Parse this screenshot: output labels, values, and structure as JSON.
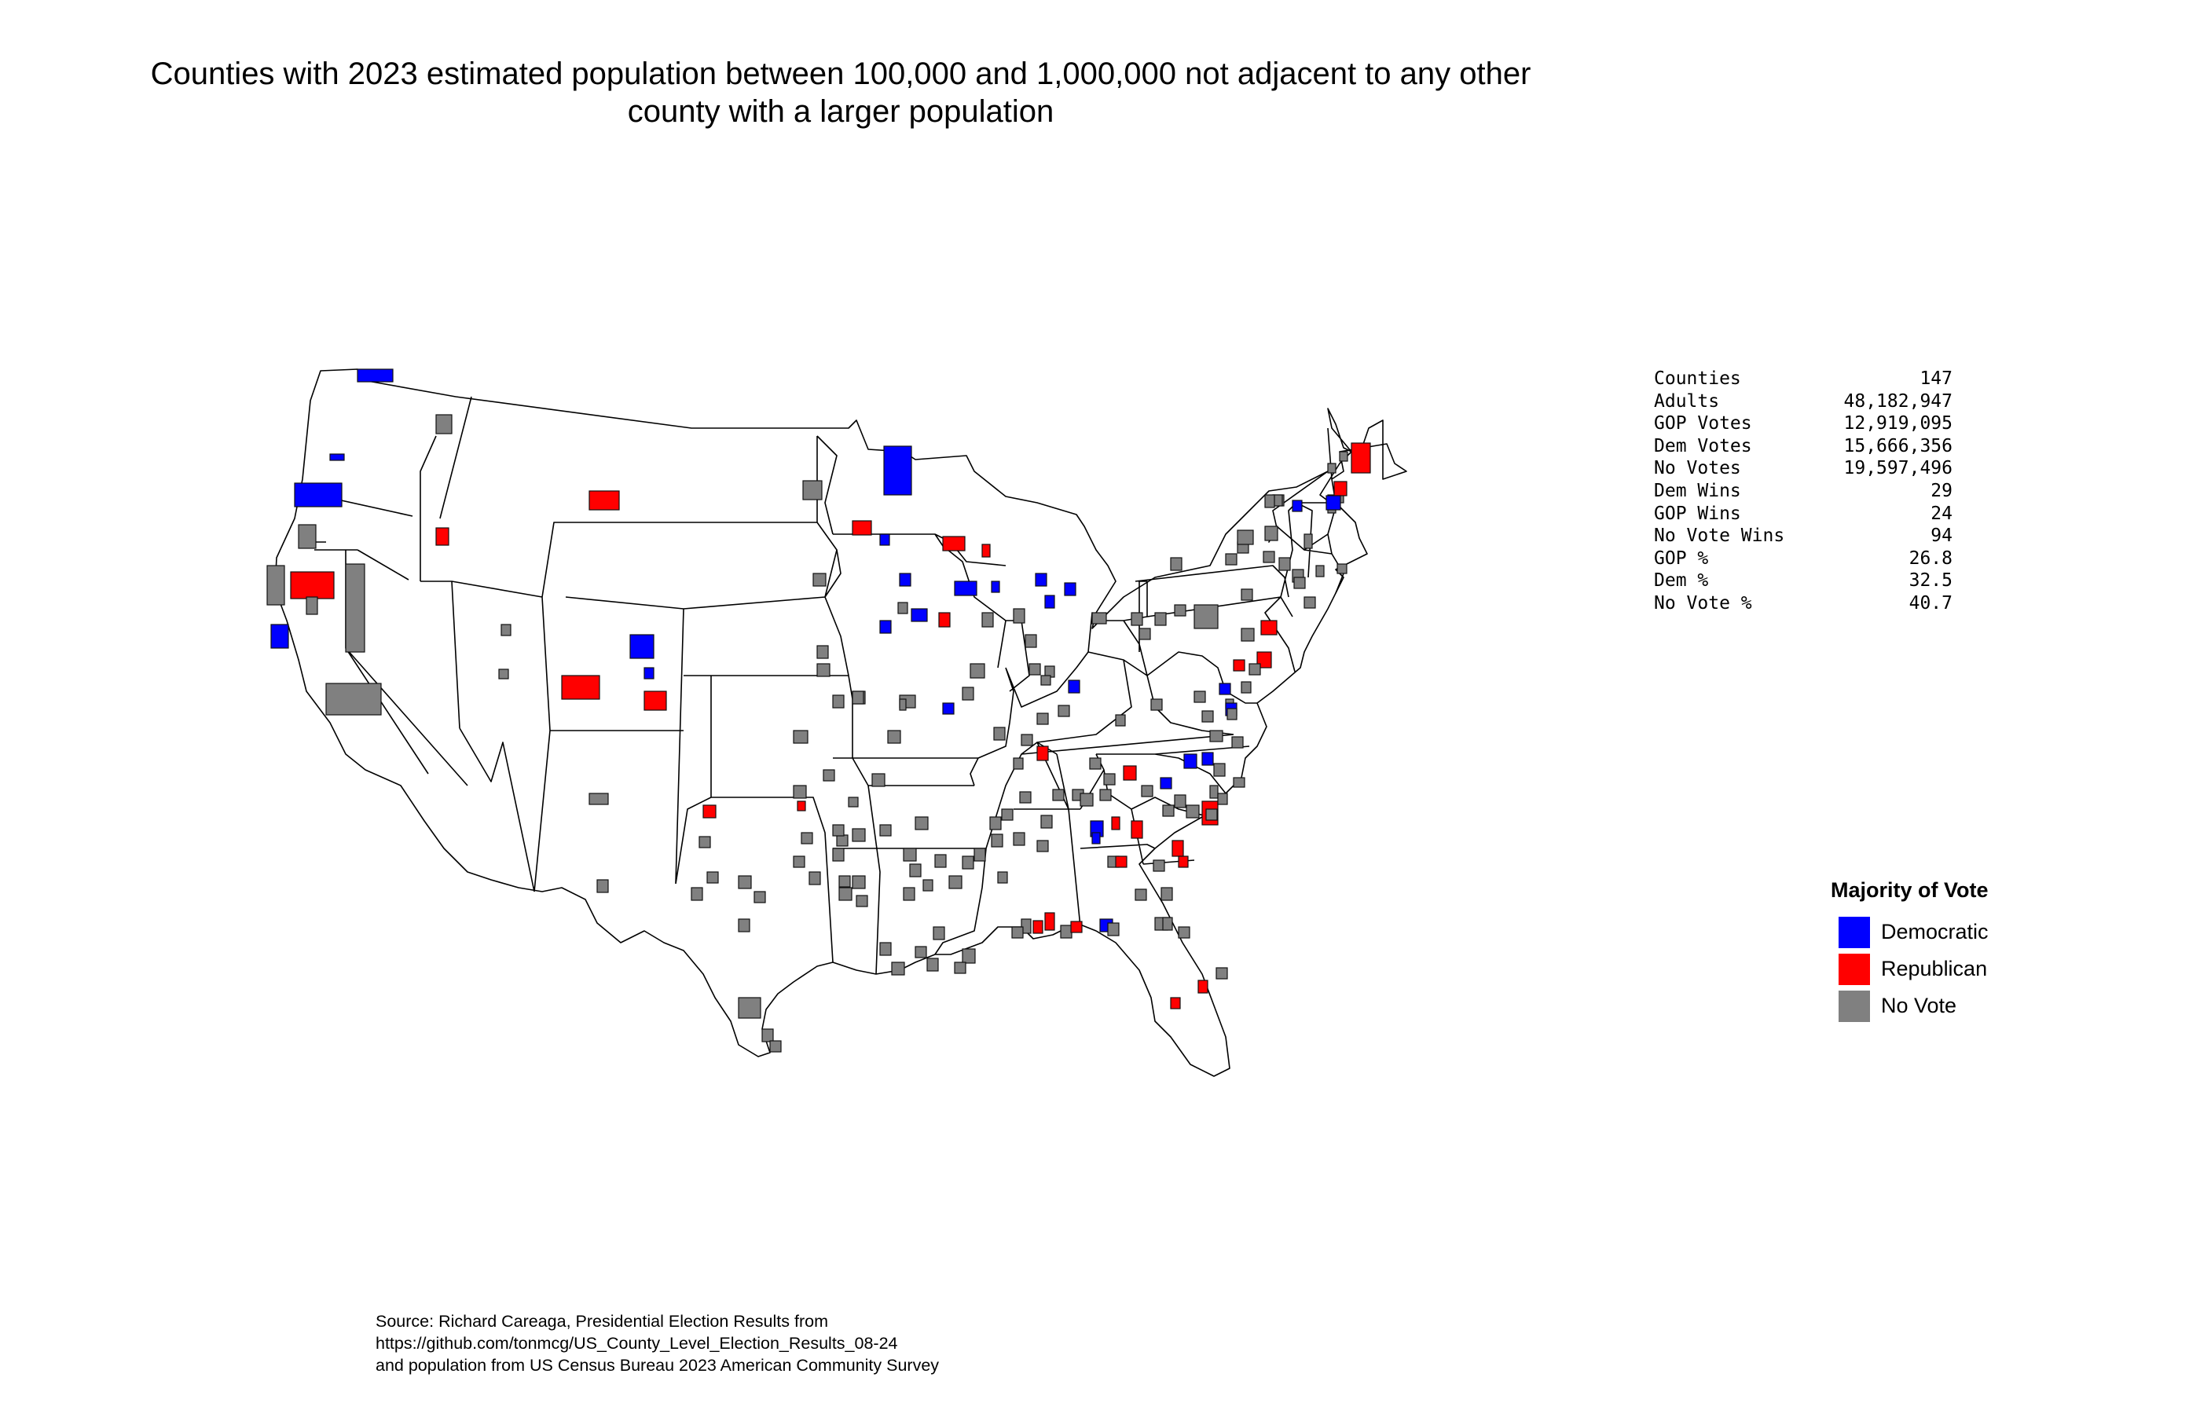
{
  "title": {
    "line1": "Counties with 2023 estimated population between 100,000 and 1,000,000 not adjacent to any other",
    "line2": "county with a larger population"
  },
  "stats": [
    {
      "label": "Counties",
      "value": "147"
    },
    {
      "label": "Adults",
      "value": "48,182,947"
    },
    {
      "label": "GOP Votes",
      "value": "12,919,095"
    },
    {
      "label": "Dem Votes",
      "value": "15,666,356"
    },
    {
      "label": "No Votes",
      "value": "19,597,496"
    },
    {
      "label": "Dem Wins",
      "value": "29"
    },
    {
      "label": "GOP Wins",
      "value": "24"
    },
    {
      "label": "No Vote Wins",
      "value": "94"
    },
    {
      "label": "GOP %",
      "value": "26.8"
    },
    {
      "label": "Dem %",
      "value": "32.5"
    },
    {
      "label": "No Vote %",
      "value": "40.7"
    }
  ],
  "legend": {
    "title": "Majority of Vote",
    "items": [
      {
        "label": "Democratic",
        "color": "#0000ff"
      },
      {
        "label": "Republican",
        "color": "#ff0000"
      },
      {
        "label": "No Vote",
        "color": "#808080"
      }
    ]
  },
  "source": {
    "line1": "Source: Richard Careaga, Presidential Election Results from",
    "line2": "https://github.com/tonmcg/US_County_Level_Election_Results_08-24",
    "line3": "and population from US Census Bureau 2023 American Community Survey"
  },
  "colors": {
    "dem": "#0000ff",
    "gop": "#ff0000",
    "none": "#808080",
    "state_fill": "#ffffff",
    "state_stroke": "#000000"
  }
}
